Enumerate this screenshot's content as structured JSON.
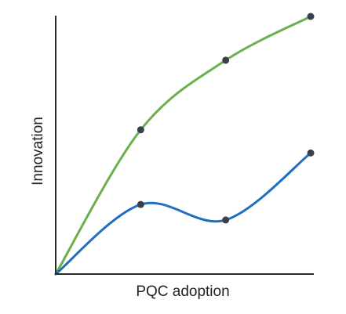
{
  "chart_data": {
    "type": "line",
    "title": "",
    "xlabel": "PQC adoption",
    "ylabel": "Innovation",
    "xlim": [
      0,
      3
    ],
    "ylim": [
      0,
      1
    ],
    "x_ticks_shown": false,
    "y_ticks_shown": false,
    "grid": false,
    "legend": "none",
    "curve": "smooth",
    "series": [
      {
        "color": "#6ab04c",
        "x": [
          0,
          1,
          2,
          3
        ],
        "y": [
          0,
          0.56,
          0.83,
          1.0
        ]
      },
      {
        "color": "#1f6fc0",
        "x": [
          0,
          1,
          2,
          3
        ],
        "y": [
          0,
          0.27,
          0.21,
          0.47
        ]
      }
    ],
    "marker_color": "#3a3f4a"
  }
}
